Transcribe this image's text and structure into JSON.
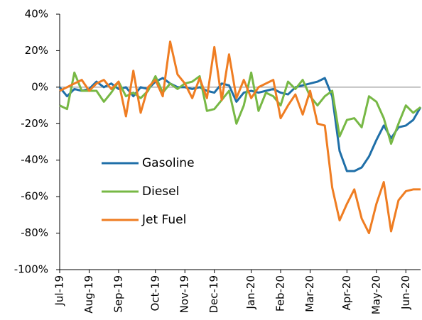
{
  "chart_data": {
    "type": "line",
    "categories": [
      "Jul-19",
      null,
      null,
      null,
      "Aug-19",
      null,
      null,
      null,
      "Sep-19",
      null,
      null,
      null,
      null,
      "Oct-19",
      null,
      null,
      null,
      "Nov-19",
      null,
      null,
      null,
      "Dec-19",
      null,
      null,
      null,
      null,
      "Jan-20",
      null,
      null,
      null,
      "Feb-20",
      null,
      null,
      null,
      "Mar-20",
      null,
      null,
      null,
      null,
      "Apr-20",
      null,
      null,
      null,
      "May-20",
      null,
      null,
      null,
      "Jun-20",
      null,
      null
    ],
    "series": [
      {
        "name": "Gasoline",
        "color": "#1f6fa8",
        "values": [
          0,
          -5,
          -1,
          -2,
          -1,
          3,
          0,
          2,
          -1,
          0,
          -5,
          0,
          -1,
          3,
          5,
          2,
          0,
          0,
          -1,
          0,
          -2,
          -3,
          2,
          1,
          -8,
          -3,
          -2,
          -3,
          -2,
          -1,
          -3,
          -4,
          0,
          1,
          2,
          3,
          5,
          -5,
          -35,
          -46,
          -46,
          -44,
          -38,
          -29,
          -21,
          -28,
          -22,
          -21,
          -18,
          -11
        ]
      },
      {
        "name": "Diesel",
        "color": "#77b845",
        "values": [
          -10,
          -12,
          8,
          -2,
          -2,
          -2,
          -8,
          -3,
          3,
          -5,
          -3,
          -6,
          -2,
          6,
          -3,
          2,
          -1,
          2,
          3,
          6,
          -13,
          -12,
          -7,
          -2,
          -20,
          -10,
          8,
          -13,
          -3,
          -5,
          -10,
          3,
          -1,
          4,
          -5,
          -10,
          -5,
          -2,
          -27,
          -18,
          -17,
          -22,
          -5,
          -8,
          -17,
          -31,
          -20,
          -10,
          -14,
          -11
        ]
      },
      {
        "name": "Jet Fuel",
        "color": "#ef7d22",
        "values": [
          -2,
          0,
          2,
          4,
          -2,
          2,
          4,
          -1,
          3,
          -16,
          9,
          -14,
          0,
          4,
          -5,
          25,
          7,
          2,
          -6,
          5,
          -6,
          22,
          -7,
          18,
          -6,
          4,
          -6,
          0,
          2,
          4,
          -17,
          -10,
          -4,
          -15,
          -2,
          -20,
          -21,
          -55,
          -73,
          -64,
          -56,
          -72,
          -80,
          -64,
          -52,
          -79,
          -62,
          -57,
          -56,
          -56
        ]
      }
    ],
    "ylim": [
      -100,
      40
    ],
    "yticks": [
      {
        "value": 40,
        "label": "40%"
      },
      {
        "value": 20,
        "label": "20%"
      },
      {
        "value": 0,
        "label": "0%"
      },
      {
        "value": -20,
        "label": "-20%"
      },
      {
        "value": -40,
        "label": "-40%"
      },
      {
        "value": -60,
        "label": "-60%"
      },
      {
        "value": -80,
        "label": "-80%"
      },
      {
        "value": -100,
        "label": "-100%"
      }
    ],
    "legend": "left"
  }
}
